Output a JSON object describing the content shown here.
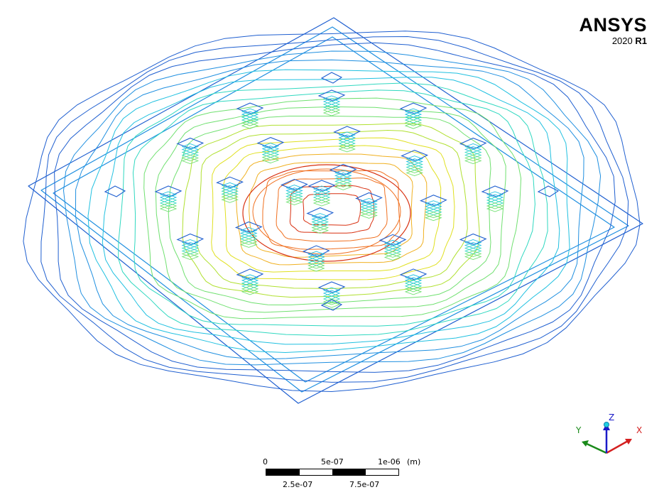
{
  "logo": {
    "name": "ANSYS",
    "version_year": "2020",
    "version_release": "R1"
  },
  "scale": {
    "top_labels": [
      "0",
      "5e-07",
      "1e-06"
    ],
    "unit": "(m)",
    "bottom_labels": [
      "2.5e-07",
      "7.5e-07"
    ]
  },
  "triad": {
    "x_label": "X",
    "y_label": "Y",
    "z_label": "Z",
    "x_color": "#d42020",
    "y_color": "#1a8a1a",
    "z_color": "#1a1ac8"
  },
  "contour_colors": [
    "#1f5fd0",
    "#1f8fe0",
    "#20c0e0",
    "#30d8c0",
    "#70e070",
    "#b0e030",
    "#e0e020",
    "#f0b020",
    "#f07020",
    "#d83010"
  ],
  "pillar": {
    "outline_color": "#1f5fd0",
    "fill_colors": [
      "#20c0e0",
      "#30d8c0",
      "#70e070"
    ]
  }
}
